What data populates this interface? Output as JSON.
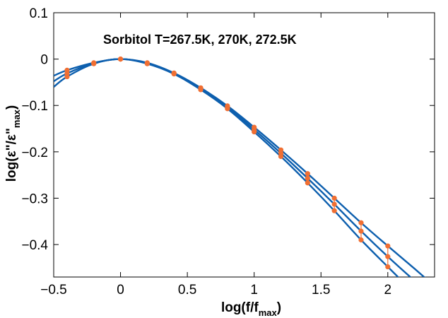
{
  "chart_data": {
    "type": "line",
    "title": "Sorbitol T=267.5K, 270K, 272.5K",
    "xlabel": {
      "main": "log(f/f",
      "sub": "max",
      "close": ")"
    },
    "ylabel": {
      "main": "log(ε\"/ε\"",
      "sub": "max",
      "close": ")"
    },
    "xlim": [
      -0.5,
      2.35
    ],
    "ylim": [
      -0.47,
      0.1
    ],
    "xticks": [
      {
        "value": -0.5,
        "label": "−0.5"
      },
      {
        "value": 0,
        "label": "0"
      },
      {
        "value": 0.5,
        "label": "0.5"
      },
      {
        "value": 1,
        "label": "1"
      },
      {
        "value": 1.5,
        "label": "1.5"
      },
      {
        "value": 2,
        "label": "2"
      }
    ],
    "yticks": [
      {
        "value": 0.1,
        "label": "0.1"
      },
      {
        "value": 0,
        "label": "0"
      },
      {
        "value": -0.1,
        "label": "−0.1"
      },
      {
        "value": -0.2,
        "label": "−0.2"
      },
      {
        "value": -0.3,
        "label": "−0.3"
      },
      {
        "value": -0.4,
        "label": "−0.4"
      }
    ],
    "line_color": "#0d5fae",
    "marker_color": "#f06f33",
    "series": [
      {
        "x": [
          -0.5,
          -0.4,
          -0.2,
          0,
          0.2,
          0.4,
          0.6,
          0.8,
          1.0,
          1.2,
          1.4,
          1.6,
          1.8,
          2.0,
          2.2,
          2.35
        ],
        "y": [
          -0.036,
          -0.024,
          -0.008,
          0,
          -0.008,
          -0.03,
          -0.062,
          -0.101,
          -0.147,
          -0.196,
          -0.247,
          -0.3,
          -0.353,
          -0.403,
          -0.452,
          -0.49
        ]
      },
      {
        "x": [
          -0.5,
          -0.4,
          -0.2,
          0,
          0.2,
          0.4,
          0.6,
          0.8,
          1.0,
          1.2,
          1.4,
          1.6,
          1.8,
          2.0,
          2.2,
          2.35
        ],
        "y": [
          -0.048,
          -0.031,
          -0.009,
          0,
          -0.009,
          -0.031,
          -0.064,
          -0.104,
          -0.152,
          -0.203,
          -0.257,
          -0.313,
          -0.371,
          -0.426,
          -0.478,
          -0.515
        ]
      },
      {
        "x": [
          -0.5,
          -0.4,
          -0.2,
          0,
          0.2,
          0.4,
          0.6,
          0.8,
          1.0,
          1.2,
          1.4,
          1.6,
          1.8,
          2.0,
          2.2,
          2.35
        ],
        "y": [
          -0.06,
          -0.038,
          -0.01,
          0,
          -0.01,
          -0.032,
          -0.066,
          -0.107,
          -0.157,
          -0.21,
          -0.267,
          -0.327,
          -0.39,
          -0.448,
          -0.505,
          -0.545
        ]
      }
    ],
    "markers": [
      {
        "x": -0.4,
        "y": [
          -0.024,
          -0.031,
          -0.038
        ]
      },
      {
        "x": -0.2,
        "y": [
          -0.008,
          -0.009,
          -0.01
        ]
      },
      {
        "x": 0,
        "y": [
          0,
          0,
          0
        ]
      },
      {
        "x": 0.2,
        "y": [
          -0.008,
          -0.009,
          -0.01
        ]
      },
      {
        "x": 0.4,
        "y": [
          -0.03,
          -0.031,
          -0.032
        ]
      },
      {
        "x": 0.6,
        "y": [
          -0.062,
          -0.064,
          -0.066
        ]
      },
      {
        "x": 0.8,
        "y": [
          -0.101,
          -0.104,
          -0.107
        ]
      },
      {
        "x": 1.0,
        "y": [
          -0.147,
          -0.152,
          -0.157
        ]
      },
      {
        "x": 1.2,
        "y": [
          -0.196,
          -0.203,
          -0.21
        ]
      },
      {
        "x": 1.4,
        "y": [
          -0.247,
          -0.257,
          -0.267
        ]
      },
      {
        "x": 1.6,
        "y": [
          -0.3,
          -0.313,
          -0.327
        ]
      },
      {
        "x": 1.8,
        "y": [
          -0.353,
          -0.371,
          -0.39
        ]
      },
      {
        "x": 2.0,
        "y": [
          -0.403,
          -0.426,
          -0.448
        ]
      }
    ],
    "grid": false,
    "legend": "none"
  }
}
